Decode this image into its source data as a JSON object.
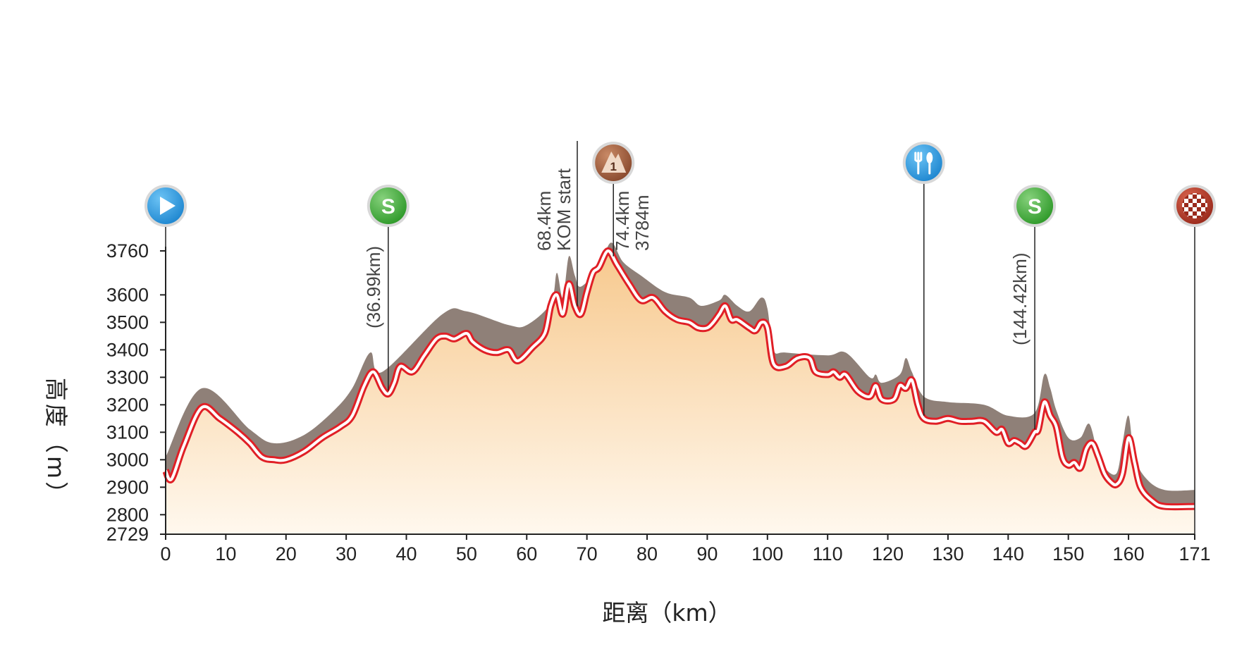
{
  "chart_data": {
    "type": "area",
    "xlabel": "距离（km）",
    "ylabel": "高度（m）",
    "x_ticks": [
      0,
      10,
      20,
      30,
      40,
      50,
      60,
      70,
      80,
      90,
      100,
      110,
      120,
      130,
      140,
      150,
      160,
      171
    ],
    "y_ticks": [
      2729,
      2800,
      2900,
      3000,
      3100,
      3200,
      3300,
      3400,
      3500,
      3600,
      3760
    ],
    "xlim": [
      0,
      171
    ],
    "ylim": [
      2729,
      3760
    ],
    "grid": false,
    "profile_x": [
      0,
      1,
      3,
      6,
      9,
      12,
      14,
      16,
      18,
      20,
      23,
      26,
      29,
      31,
      33,
      34.5,
      36,
      37,
      38,
      39,
      41,
      43,
      45,
      46.5,
      48,
      50,
      51,
      53,
      55,
      57,
      58.5,
      61,
      63,
      64,
      65,
      66,
      67,
      68,
      69,
      70,
      71,
      72,
      73.5,
      75,
      77,
      79,
      81,
      83,
      85,
      87,
      88.5,
      90,
      91,
      92,
      93,
      94,
      95,
      97,
      98,
      99,
      100,
      101,
      103,
      105,
      107,
      108,
      110,
      111,
      112,
      113,
      115,
      117,
      118,
      119,
      121,
      122,
      123,
      124,
      125,
      126,
      128,
      130,
      132,
      134,
      136,
      138,
      139,
      140,
      141,
      142,
      143,
      144.4,
      145,
      146,
      147,
      148,
      149,
      150,
      151,
      152,
      153,
      154,
      155,
      156,
      157,
      158,
      159,
      160,
      161,
      162,
      164,
      166,
      171
    ],
    "profile_elev": [
      2960,
      2930,
      3050,
      3190,
      3150,
      3100,
      3060,
      3010,
      3000,
      3000,
      3030,
      3080,
      3120,
      3160,
      3270,
      3320,
      3260,
      3240,
      3280,
      3340,
      3320,
      3380,
      3440,
      3450,
      3440,
      3460,
      3430,
      3400,
      3390,
      3400,
      3360,
      3410,
      3460,
      3560,
      3600,
      3530,
      3640,
      3560,
      3530,
      3610,
      3680,
      3700,
      3760,
      3710,
      3640,
      3580,
      3590,
      3540,
      3510,
      3500,
      3480,
      3480,
      3500,
      3530,
      3560,
      3510,
      3510,
      3480,
      3470,
      3500,
      3480,
      3350,
      3340,
      3370,
      3370,
      3320,
      3310,
      3320,
      3300,
      3310,
      3250,
      3230,
      3270,
      3220,
      3220,
      3270,
      3260,
      3290,
      3200,
      3150,
      3140,
      3150,
      3140,
      3140,
      3140,
      3100,
      3110,
      3060,
      3070,
      3060,
      3050,
      3100,
      3110,
      3210,
      3160,
      3120,
      3010,
      2980,
      2990,
      2970,
      3040,
      3060,
      3010,
      2950,
      2920,
      2910,
      2950,
      3080,
      2990,
      2900,
      2850,
      2830,
      2830
    ],
    "climb_shadow_x": [
      0,
      6,
      14,
      18,
      23,
      28,
      31,
      34,
      36,
      46,
      50,
      57,
      60,
      64,
      65,
      66,
      67,
      68,
      69,
      72,
      74,
      76,
      79,
      83,
      87,
      89,
      92,
      93,
      95,
      97,
      99,
      100,
      101,
      103,
      110,
      113,
      117,
      118,
      119,
      122,
      123,
      124,
      126,
      130,
      136,
      140,
      144.4,
      146,
      147,
      148,
      150,
      152,
      153.5,
      155,
      156,
      158,
      159,
      160,
      161,
      163,
      166,
      171
    ],
    "climb_shadow_elev": [
      3010,
      3260,
      3110,
      3060,
      3090,
      3180,
      3260,
      3390,
      3320,
      3530,
      3540,
      3490,
      3490,
      3570,
      3680,
      3590,
      3740,
      3670,
      3630,
      3700,
      3790,
      3720,
      3670,
      3610,
      3590,
      3560,
      3580,
      3600,
      3560,
      3540,
      3590,
      3550,
      3400,
      3390,
      3380,
      3390,
      3300,
      3310,
      3280,
      3310,
      3370,
      3320,
      3230,
      3210,
      3200,
      3160,
      3170,
      3310,
      3260,
      3180,
      3080,
      3080,
      3130,
      3010,
      2970,
      2950,
      3060,
      3160,
      3010,
      2930,
      2890,
      2890
    ],
    "markers": [
      {
        "type": "start",
        "km": 0,
        "icon": "play-icon"
      },
      {
        "type": "sprint",
        "km": 36.99,
        "label": "(36.99km)",
        "glyph": "S",
        "icon": "sprint-icon"
      },
      {
        "type": "kom-start",
        "km": 68.4,
        "label_line1": "68.4km",
        "label_line2": "KOM start"
      },
      {
        "type": "kom",
        "km": 74.4,
        "label_line1": "74.4km",
        "label_line2": "3784m",
        "glyph": "1",
        "icon": "mountain-icon"
      },
      {
        "type": "feed",
        "km": 126,
        "icon": "fork-knife-icon"
      },
      {
        "type": "sprint",
        "km": 144.42,
        "label": "(144.42km)",
        "glyph": "S",
        "icon": "sprint-icon"
      },
      {
        "type": "finish",
        "km": 171,
        "icon": "checkered-flag-icon"
      }
    ],
    "colors": {
      "profile_line": "#e01f26",
      "shadow": "#8f8078",
      "fill_top": "#f7c98e",
      "fill_bottom": "#fff8ee",
      "start_marker": "#1f87d0",
      "sprint_marker": "#2f9a2a",
      "kom_marker": "#8a4a2e",
      "feed_marker": "#1f8fd8",
      "finish_marker": "#9a2a1c"
    }
  }
}
